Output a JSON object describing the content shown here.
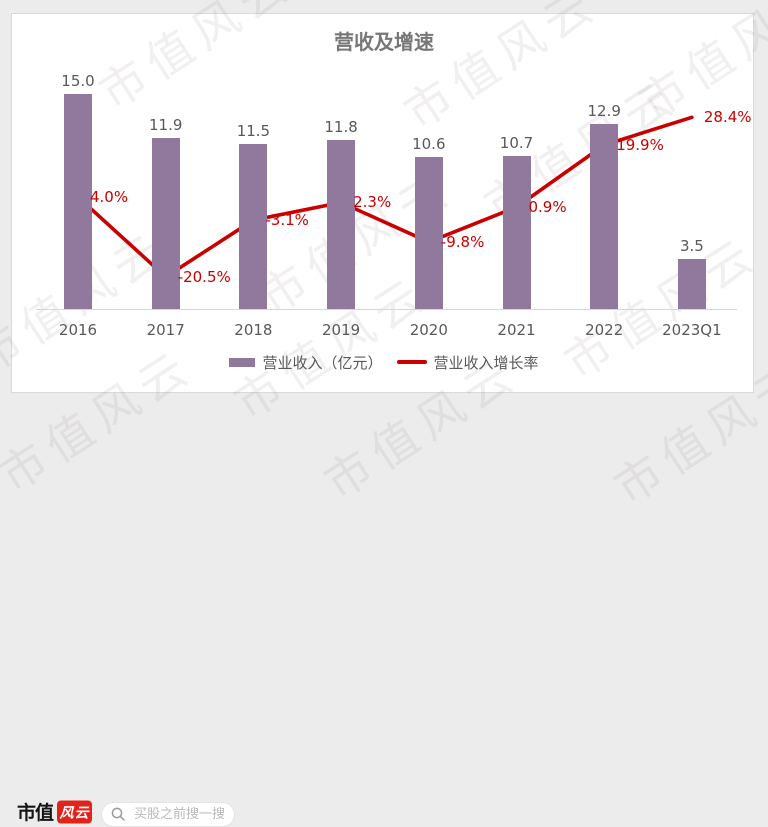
{
  "title": "营收及增速",
  "watermark": {
    "text": "市值风云"
  },
  "chart_data": {
    "type": "combo-bar-line",
    "title": "营收及增速",
    "categories": [
      "2016",
      "2017",
      "2018",
      "2019",
      "2020",
      "2021",
      "2022",
      "2023Q1"
    ],
    "series": [
      {
        "name": "营业收入（亿元）",
        "type": "bar",
        "values": [
          15.0,
          11.9,
          11.5,
          11.8,
          10.6,
          10.7,
          12.9,
          3.5
        ],
        "labels": [
          "15.0",
          "11.9",
          "11.5",
          "11.8",
          "10.6",
          "10.7",
          "12.9",
          "3.5"
        ],
        "color": "#91799D"
      },
      {
        "name": "营业收入增长率",
        "type": "line",
        "values": [
          4.0,
          -20.5,
          -3.1,
          2.3,
          -9.8,
          0.9,
          19.9,
          28.4
        ],
        "labels": [
          "4.0%",
          "-20.5%",
          "-3.1%",
          "2.3%",
          "-9.8%",
          "0.9%",
          "19.9%",
          "28.4%"
        ],
        "color": "#C80000"
      }
    ],
    "legend_position": "bottom",
    "grid": false,
    "value_axis_visible": false,
    "label_color": "#595959",
    "line_label_color": "#C80000"
  },
  "footer": {
    "logo_text": "市值",
    "logo_badge_text": "风云",
    "search_placeholder": "买股之前搜一搜"
  },
  "colors": {
    "bar": "#91799D",
    "line": "#C80000",
    "badge_red": "#E2231A",
    "page_bg": "#ECECEC",
    "title_gray": "#777777"
  }
}
